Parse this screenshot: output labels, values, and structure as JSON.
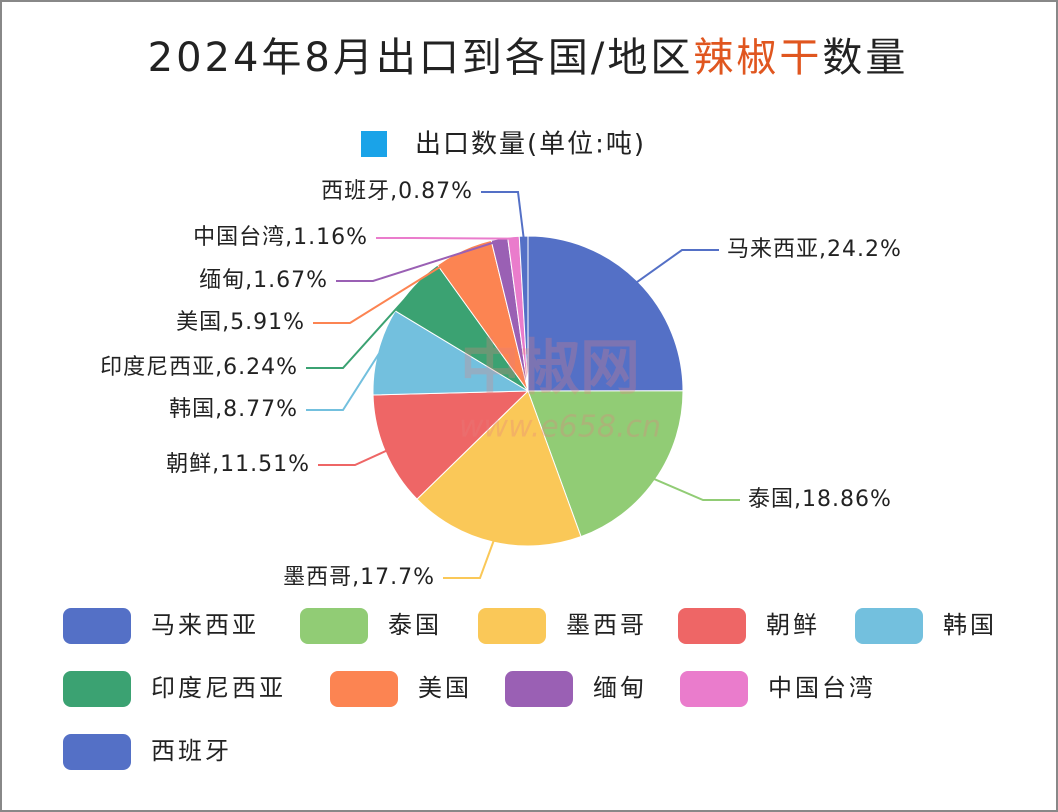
{
  "chart_data": {
    "type": "pie",
    "title": [
      "2024年8月出口到各国/地区",
      "辣椒干",
      "数量"
    ],
    "title_highlight_color": "#e0561f",
    "series_name": "出口数量(单位:吨)",
    "series_color": "#1aa3e8",
    "watermark": [
      "中椒网",
      "www.e658.cn"
    ],
    "categories": [
      "马来西亚",
      "泰国",
      "墨西哥",
      "朝鲜",
      "韩国",
      "印度尼西亚",
      "美国",
      "缅甸",
      "中国台湾",
      "西班牙"
    ],
    "values": [
      24.2,
      18.86,
      17.7,
      11.51,
      8.77,
      6.24,
      5.91,
      1.67,
      1.16,
      0.87
    ],
    "value_labels": [
      "马来西亚,24.2%",
      "泰国,18.86%",
      "墨西哥,17.7%",
      "朝鲜,11.51%",
      "韩国,8.77%",
      "印度尼西亚,6.24%",
      "美国,5.91%",
      "缅甸,1.67%",
      "中国台湾,1.16%",
      "西班牙,0.87%"
    ],
    "colors": [
      "#5470c6",
      "#91cc75",
      "#fac858",
      "#ee6666",
      "#73c0de",
      "#3ba272",
      "#fc8452",
      "#9a60b4",
      "#ea7ccc",
      "#5470c6"
    ]
  }
}
